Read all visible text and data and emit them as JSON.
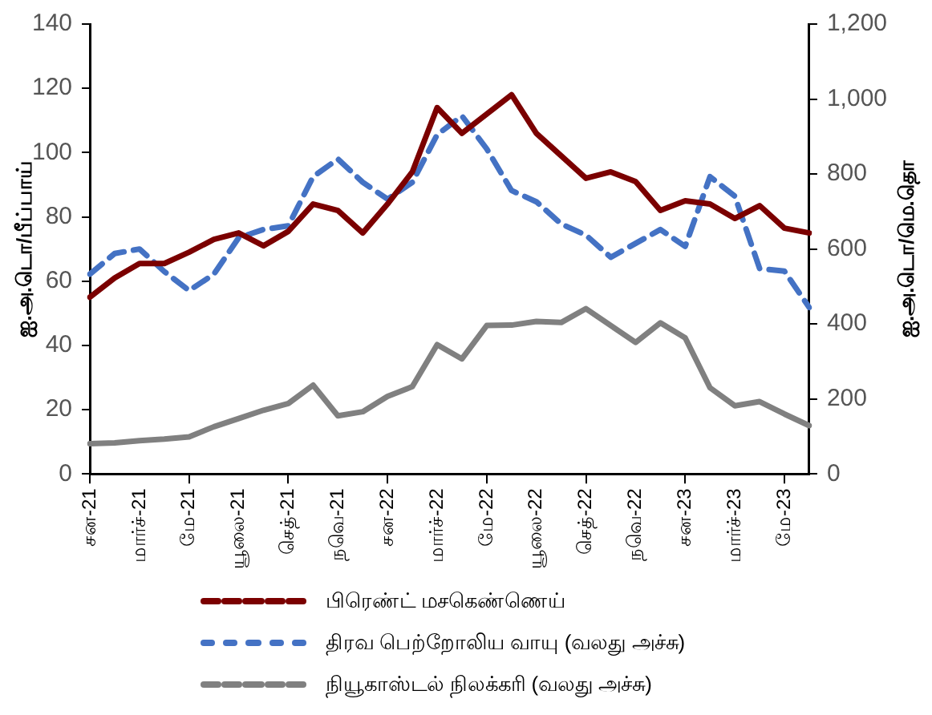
{
  "chart_data": {
    "type": "line",
    "ylabel": "ஐ.அ.டொ/பீப்பாய்",
    "y2label": "ஐ.அ.டொ/மெ.தொ",
    "categories": [
      "சன-21",
      null,
      "மார்ச்-21",
      null,
      "மே-21",
      null,
      "யூலை-21",
      null,
      "செத்-21",
      null,
      "நவெ-21",
      null,
      "சன-22",
      null,
      "மார்ச்-22",
      null,
      "மே-22",
      null,
      "யூலை-22",
      null,
      "செத்-22",
      null,
      "நவெ-22",
      null,
      "சன-23",
      null,
      "மார்ச்-23",
      null,
      "மே-23",
      null
    ],
    "series": [
      {
        "name": "பிரெண்ட் மசகெண்ணெய்",
        "color": "#7b0000",
        "line_style": "solid",
        "values": [
          55,
          61,
          65.5,
          65.5,
          69,
          73,
          75,
          71,
          75.5,
          84,
          82,
          75,
          84,
          94,
          114,
          106,
          112,
          118,
          106,
          99,
          92,
          94,
          91,
          82,
          85,
          84,
          79.5,
          83.5,
          76.5,
          75
        ]
      },
      {
        "name": "திரவ பெற்றோலிய வாயு (வலது அச்சு)",
        "color": "#4472c4",
        "axis": "y2",
        "line_style": "dashed",
        "values": [
          533,
          588,
          600,
          540,
          489,
          533,
          630,
          652,
          662,
          793,
          840,
          778,
          733,
          778,
          905,
          955,
          867,
          756,
          726,
          667,
          637,
          578,
          615,
          652,
          607,
          793,
          741,
          548,
          541,
          444
        ]
      },
      {
        "name": "நியூகாஸ்டல் நிலக்கரி (வலது அச்சு)",
        "color": "#808080",
        "axis": "y2",
        "line_style": "solid",
        "values": [
          81,
          83,
          89,
          93,
          99,
          126,
          148,
          170,
          188,
          237,
          155,
          166,
          207,
          233,
          345,
          307,
          396,
          397,
          407,
          404,
          441,
          396,
          351,
          403,
          363,
          230,
          182,
          193,
          160,
          129
        ]
      }
    ],
    "ylim": [
      0,
      140
    ],
    "yticks": [
      0,
      20,
      40,
      60,
      80,
      100,
      120,
      140
    ],
    "y2lim": [
      0,
      1200
    ],
    "y2ticks": [
      0,
      {
        "value": 200,
        "label": "200"
      },
      {
        "value": 400,
        "label": "400"
      },
      {
        "value": 600,
        "label": "600"
      },
      {
        "value": 800,
        "label": "800"
      },
      {
        "value": 1000,
        "label": "1,000"
      },
      {
        "value": 1200,
        "label": "1,200"
      }
    ],
    "grid": false,
    "legend": "bottom",
    "marker": "none"
  }
}
